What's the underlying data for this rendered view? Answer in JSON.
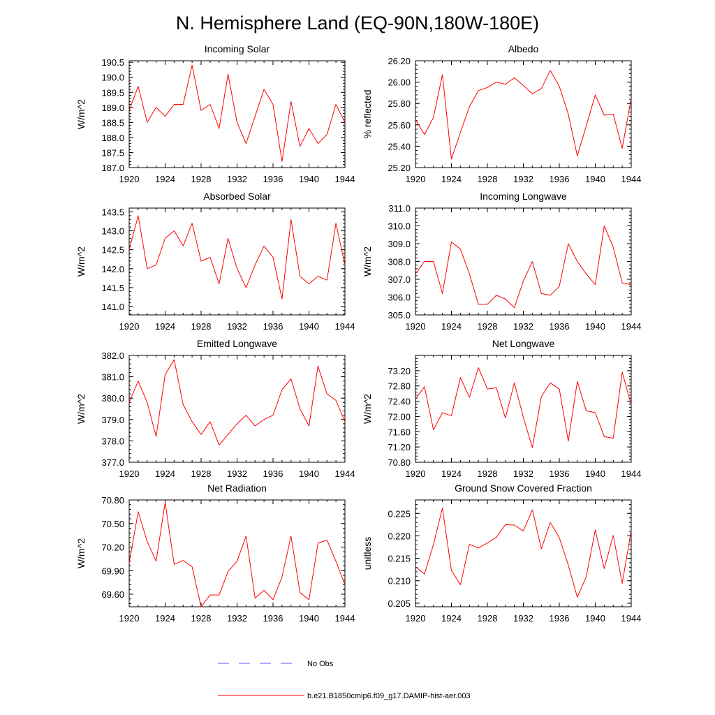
{
  "figure": {
    "title": "N. Hemisphere Land (EQ-90N,180W-180E)",
    "series_color": "#ff0000",
    "obs_color": "#5a5aff"
  },
  "legend": {
    "items": [
      {
        "label": "No Obs",
        "style": "dashed",
        "color": "#5a5aff"
      },
      {
        "label": "b.e21.B1850cmip6.f09_g17.DAMIP-hist-aer.003",
        "style": "solid",
        "color": "#ff0000"
      }
    ]
  },
  "chart_data": [
    {
      "type": "line",
      "title": "Incoming Solar",
      "ylabel": "W/m^2",
      "xlabel": "",
      "xlim": [
        1920,
        1944
      ],
      "ylim": [
        187.0,
        190.55
      ],
      "x_ticks": [
        1920,
        1924,
        1928,
        1932,
        1936,
        1940,
        1944
      ],
      "y_ticks": [
        "187.0",
        "187.5",
        "188.0",
        "188.5",
        "189.0",
        "189.5",
        "190.0",
        "190.5"
      ],
      "grid": false,
      "series": [
        {
          "x": [
            1920,
            1921,
            1922,
            1923,
            1924,
            1925,
            1926,
            1927,
            1928,
            1929,
            1930,
            1931,
            1932,
            1933,
            1934,
            1935,
            1936,
            1937,
            1938,
            1939,
            1940,
            1941,
            1942,
            1943,
            1944
          ],
          "y": [
            188.9,
            189.7,
            188.5,
            189.0,
            188.7,
            189.1,
            189.1,
            190.4,
            188.9,
            189.1,
            188.3,
            190.1,
            188.5,
            187.8,
            188.7,
            189.6,
            189.1,
            187.2,
            189.2,
            187.7,
            188.3,
            187.8,
            188.1,
            189.1,
            188.5
          ]
        }
      ]
    },
    {
      "type": "line",
      "title": "Albedo",
      "ylabel": "% reflected",
      "xlabel": "",
      "xlim": [
        1920,
        1944
      ],
      "ylim": [
        25.2,
        26.2
      ],
      "x_ticks": [
        1920,
        1924,
        1928,
        1932,
        1936,
        1940,
        1944
      ],
      "y_ticks": [
        "25.20",
        "25.40",
        "25.60",
        "25.80",
        "26.00",
        "26.20"
      ],
      "grid": false,
      "series": [
        {
          "x": [
            1920,
            1921,
            1922,
            1923,
            1924,
            1925,
            1926,
            1927,
            1928,
            1929,
            1930,
            1931,
            1932,
            1933,
            1934,
            1935,
            1936,
            1937,
            1938,
            1939,
            1940,
            1941,
            1942,
            1943,
            1944
          ],
          "y": [
            25.65,
            25.51,
            25.67,
            26.07,
            25.28,
            25.53,
            25.77,
            25.92,
            25.95,
            26.0,
            25.98,
            26.04,
            25.97,
            25.89,
            25.94,
            26.11,
            25.96,
            25.7,
            25.31,
            25.59,
            25.88,
            25.69,
            25.7,
            25.38,
            25.85
          ]
        }
      ]
    },
    {
      "type": "line",
      "title": "Absorbed Solar",
      "ylabel": "W/m^2",
      "xlabel": "",
      "xlim": [
        1920,
        1944
      ],
      "ylim": [
        140.78,
        143.6
      ],
      "x_ticks": [
        1920,
        1924,
        1928,
        1932,
        1936,
        1940,
        1944
      ],
      "y_ticks": [
        "141.0",
        "141.5",
        "142.0",
        "142.5",
        "143.0",
        "143.5"
      ],
      "grid": false,
      "series": [
        {
          "x": [
            1920,
            1921,
            1922,
            1923,
            1924,
            1925,
            1926,
            1927,
            1928,
            1929,
            1930,
            1931,
            1932,
            1933,
            1934,
            1935,
            1936,
            1937,
            1938,
            1939,
            1940,
            1941,
            1942,
            1943,
            1944
          ],
          "y": [
            142.5,
            143.4,
            142.0,
            142.1,
            142.8,
            143.0,
            142.6,
            143.2,
            142.2,
            142.3,
            141.6,
            142.8,
            142.0,
            141.5,
            142.1,
            142.6,
            142.3,
            141.2,
            143.3,
            141.8,
            141.6,
            141.8,
            141.7,
            143.2,
            142.1
          ]
        }
      ]
    },
    {
      "type": "line",
      "title": "Incoming Longwave",
      "ylabel": "W/m^2",
      "xlabel": "",
      "xlim": [
        1920,
        1944
      ],
      "ylim": [
        305.0,
        311.0
      ],
      "x_ticks": [
        1920,
        1924,
        1928,
        1932,
        1936,
        1940,
        1944
      ],
      "y_ticks": [
        "305.0",
        "306.0",
        "307.0",
        "308.0",
        "309.0",
        "310.0",
        "311.0"
      ],
      "grid": false,
      "series": [
        {
          "x": [
            1920,
            1921,
            1922,
            1923,
            1924,
            1925,
            1926,
            1927,
            1928,
            1929,
            1930,
            1931,
            1932,
            1933,
            1934,
            1935,
            1936,
            1937,
            1938,
            1939,
            1940,
            1941,
            1942,
            1943,
            1944
          ],
          "y": [
            307.3,
            308.0,
            308.0,
            306.2,
            309.1,
            308.7,
            307.3,
            305.6,
            305.6,
            306.1,
            305.9,
            305.4,
            306.9,
            308.0,
            306.2,
            306.1,
            306.6,
            309.0,
            308.0,
            307.3,
            306.7,
            310.0,
            308.8,
            306.8,
            306.7
          ]
        }
      ]
    },
    {
      "type": "line",
      "title": "Emitted Longwave",
      "ylabel": "W/m^2",
      "xlabel": "",
      "xlim": [
        1920,
        1944
      ],
      "ylim": [
        377.0,
        382.0
      ],
      "x_ticks": [
        1920,
        1924,
        1928,
        1932,
        1936,
        1940,
        1944
      ],
      "y_ticks": [
        "377.0",
        "378.0",
        "379.0",
        "380.0",
        "381.0",
        "382.0"
      ],
      "grid": false,
      "series": [
        {
          "x": [
            1920,
            1921,
            1922,
            1923,
            1924,
            1925,
            1926,
            1927,
            1928,
            1929,
            1930,
            1931,
            1932,
            1933,
            1934,
            1935,
            1936,
            1937,
            1938,
            1939,
            1940,
            1941,
            1942,
            1943,
            1944
          ],
          "y": [
            379.8,
            380.8,
            379.8,
            378.2,
            381.1,
            381.8,
            379.7,
            378.9,
            378.3,
            378.9,
            377.8,
            378.3,
            378.8,
            379.2,
            378.7,
            379.0,
            379.2,
            380.4,
            380.9,
            379.5,
            378.7,
            381.5,
            380.2,
            379.9,
            378.9
          ]
        }
      ]
    },
    {
      "type": "line",
      "title": "Net Longwave",
      "ylabel": "W/m^2",
      "xlabel": "",
      "xlim": [
        1920,
        1944
      ],
      "ylim": [
        70.8,
        73.6
      ],
      "x_ticks": [
        1920,
        1924,
        1928,
        1932,
        1936,
        1940,
        1944
      ],
      "y_ticks": [
        "70.80",
        "71.20",
        "71.60",
        "72.00",
        "72.40",
        "72.80",
        "73.20"
      ],
      "grid": false,
      "series": [
        {
          "x": [
            1920,
            1921,
            1922,
            1923,
            1924,
            1925,
            1926,
            1927,
            1928,
            1929,
            1930,
            1931,
            1932,
            1933,
            1934,
            1935,
            1936,
            1937,
            1938,
            1939,
            1940,
            1941,
            1942,
            1943,
            1944
          ],
          "y": [
            72.45,
            72.78,
            71.65,
            72.1,
            72.02,
            73.02,
            72.5,
            73.28,
            72.72,
            72.75,
            71.96,
            72.88,
            71.98,
            71.18,
            72.52,
            72.88,
            72.72,
            71.35,
            72.92,
            72.15,
            72.1,
            71.47,
            71.43,
            73.16,
            72.3
          ]
        }
      ]
    },
    {
      "type": "line",
      "title": "Net Radiation",
      "ylabel": "W/m^2",
      "xlabel": "",
      "xlim": [
        1920,
        1944
      ],
      "ylim": [
        69.44,
        70.8
      ],
      "x_ticks": [
        1920,
        1924,
        1928,
        1932,
        1936,
        1940,
        1944
      ],
      "y_ticks": [
        "69.60",
        "69.90",
        "70.20",
        "70.50",
        "70.80"
      ],
      "grid": false,
      "series": [
        {
          "x": [
            1920,
            1921,
            1922,
            1923,
            1924,
            1925,
            1926,
            1927,
            1928,
            1929,
            1930,
            1931,
            1932,
            1933,
            1934,
            1935,
            1936,
            1937,
            1938,
            1939,
            1940,
            1941,
            1942,
            1943,
            1944
          ],
          "y": [
            70.0,
            70.65,
            70.27,
            70.02,
            70.77,
            69.98,
            70.03,
            69.95,
            69.44,
            69.59,
            69.59,
            69.89,
            70.02,
            70.34,
            69.55,
            69.65,
            69.53,
            69.82,
            70.34,
            69.62,
            69.53,
            70.25,
            70.29,
            70.02,
            69.72
          ]
        }
      ]
    },
    {
      "type": "line",
      "title": "Ground Snow Covered Fraction",
      "ylabel": "unitless",
      "xlabel": "",
      "xlim": [
        1920,
        1944
      ],
      "ylim": [
        0.2042,
        0.228
      ],
      "x_ticks": [
        1920,
        1924,
        1928,
        1932,
        1936,
        1940,
        1944
      ],
      "y_ticks": [
        "0.205",
        "0.210",
        "0.215",
        "0.220",
        "0.225"
      ],
      "grid": false,
      "series": [
        {
          "x": [
            1920,
            1921,
            1922,
            1923,
            1924,
            1925,
            1926,
            1927,
            1928,
            1929,
            1930,
            1931,
            1932,
            1933,
            1934,
            1935,
            1936,
            1937,
            1938,
            1939,
            1940,
            1941,
            1942,
            1943,
            1944
          ],
          "y": [
            0.2131,
            0.2115,
            0.2181,
            0.2262,
            0.2123,
            0.2091,
            0.2181,
            0.2173,
            0.2184,
            0.2197,
            0.2225,
            0.2224,
            0.2211,
            0.2258,
            0.2171,
            0.223,
            0.2196,
            0.2135,
            0.2063,
            0.2109,
            0.2213,
            0.2127,
            0.2201,
            0.2094,
            0.2212
          ]
        }
      ]
    }
  ]
}
